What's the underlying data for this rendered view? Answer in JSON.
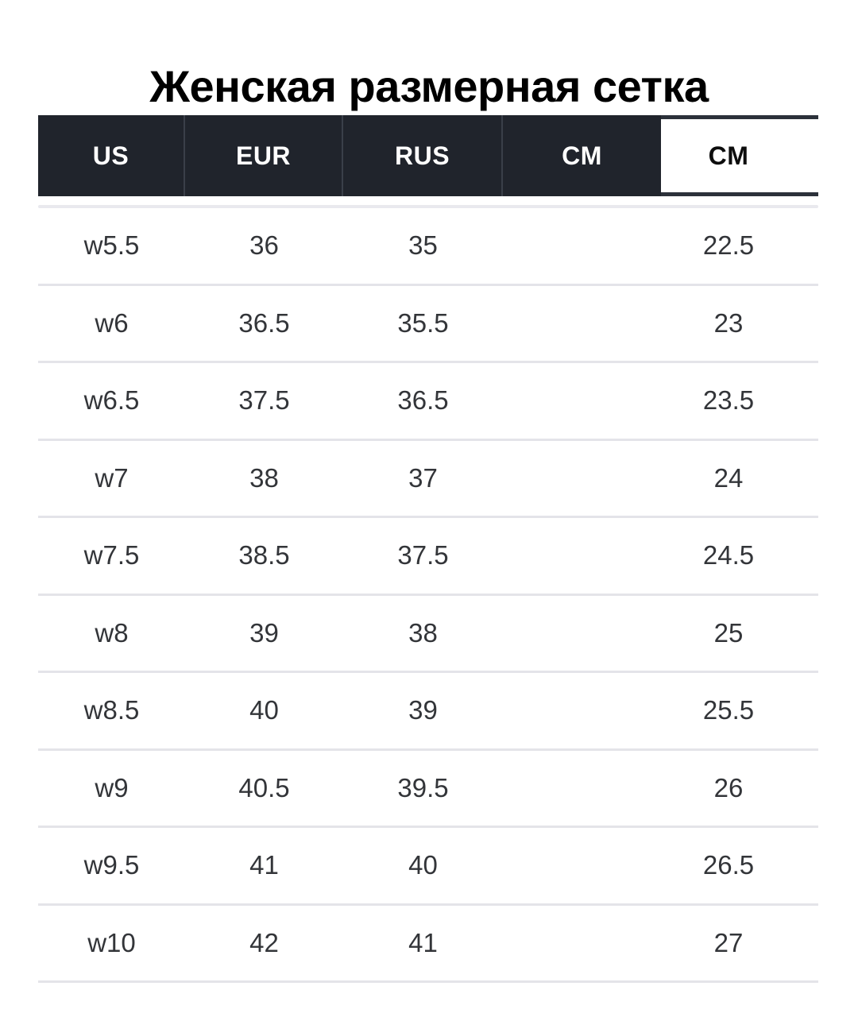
{
  "title": "Женская размерная сетка",
  "table": {
    "headers": [
      {
        "label": "US",
        "highlighted": false
      },
      {
        "label": "EUR",
        "highlighted": false
      },
      {
        "label": "RUS",
        "highlighted": false
      },
      {
        "label": "CM",
        "highlighted": false
      },
      {
        "label": "CM",
        "highlighted": true
      }
    ],
    "rows": [
      [
        "w5.5",
        "36",
        "35",
        "",
        "22.5"
      ],
      [
        "w6",
        "36.5",
        "35.5",
        "",
        "23"
      ],
      [
        "w6.5",
        "37.5",
        "36.5",
        "",
        "23.5"
      ],
      [
        "w7",
        "38",
        "37",
        "",
        "24"
      ],
      [
        "w7.5",
        "38.5",
        "37.5",
        "",
        "24.5"
      ],
      [
        "w8",
        "39",
        "38",
        "",
        "25"
      ],
      [
        "w8.5",
        "40",
        "39",
        "",
        "25.5"
      ],
      [
        "w9",
        "40.5",
        "39.5",
        "",
        "26"
      ],
      [
        "w9.5",
        "41",
        "40",
        "",
        "26.5"
      ],
      [
        "w10",
        "42",
        "41",
        "",
        "27"
      ]
    ]
  },
  "colors": {
    "page_bg": "#ffffff",
    "title_color": "#000000",
    "header_bg": "#20242c",
    "header_divider": "#3a3f49",
    "header_text": "#ffffff",
    "highlight_bg": "#ffffff",
    "highlight_border": "#2c313a",
    "highlight_text": "#0d0d0d",
    "row_text": "#333539",
    "separator": "#e4e4e9"
  }
}
